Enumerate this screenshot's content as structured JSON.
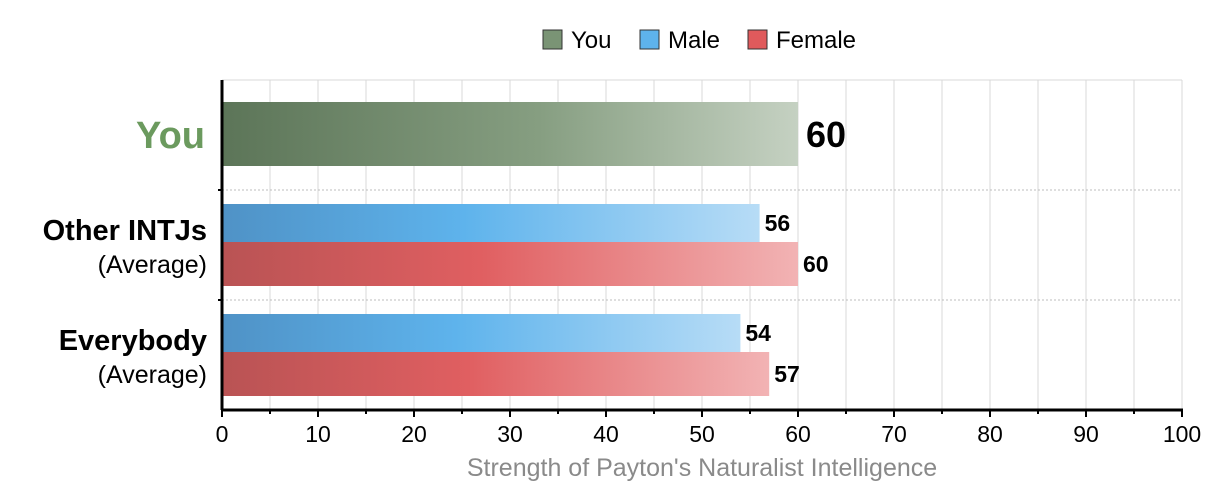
{
  "chart_data": {
    "type": "bar",
    "orientation": "horizontal",
    "xlabel": "Strength of Payton's Naturalist Intelligence",
    "xlim": [
      0,
      100
    ],
    "xticks": [
      0,
      10,
      20,
      30,
      40,
      50,
      60,
      70,
      80,
      90,
      100
    ],
    "grid": true,
    "legend_placement": "top-center",
    "legend": [
      {
        "name": "You",
        "color": "#7a9475"
      },
      {
        "name": "Male",
        "color": "#5eb3ec"
      },
      {
        "name": "Female",
        "color": "#e05a5c"
      }
    ],
    "groups": [
      {
        "label": "You",
        "sublabel": "",
        "bars": [
          {
            "series": "You",
            "value": 60
          }
        ]
      },
      {
        "label": "Other INTJs",
        "sublabel": "(Average)",
        "bars": [
          {
            "series": "Male",
            "value": 56
          },
          {
            "series": "Female",
            "value": 60
          }
        ]
      },
      {
        "label": "Everybody",
        "sublabel": "(Average)",
        "bars": [
          {
            "series": "Male",
            "value": 54
          },
          {
            "series": "Female",
            "value": 57
          }
        ]
      }
    ]
  }
}
